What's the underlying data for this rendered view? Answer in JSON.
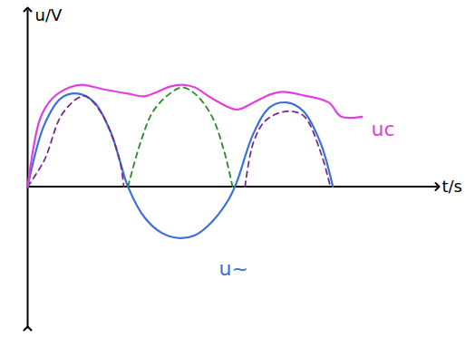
{
  "chart_data": {
    "type": "line",
    "x_label": "t/s",
    "y_label": "u/V",
    "xlim": [
      0,
      49
    ],
    "ylim": [
      -16,
      20
    ],
    "xticks": [],
    "yticks": [],
    "tick_labels": false,
    "series": [
      {
        "name": "u~",
        "color": "#3a6fe0",
        "line_style": "solid",
        "x": [
          0,
          2,
          4,
          6,
          8,
          10,
          11,
          12,
          14,
          16,
          18,
          20,
          22,
          24,
          25,
          27,
          29,
          31,
          33,
          35,
          36.5
        ],
        "values": [
          0,
          7,
          10,
          10.5,
          9.5,
          6,
          3,
          0,
          -3.5,
          -5.2,
          -5.8,
          -5.5,
          -4,
          -1.5,
          0.5,
          6,
          9,
          9.5,
          8.5,
          5,
          0
        ]
      },
      {
        "color": "#7a2a8a",
        "line_style": "dashed",
        "x": [
          0,
          2,
          4,
          6,
          7,
          9,
          11,
          11.5
        ],
        "values": [
          0,
          3,
          8,
          10,
          10.2,
          8,
          3,
          0
        ]
      },
      {
        "color": "#2a8a2a",
        "line_style": "dashed",
        "x": [
          12,
          13.5,
          15,
          17,
          18.5,
          20,
          22,
          23.5,
          24.5
        ],
        "values": [
          0,
          5,
          8.5,
          10.5,
          11.2,
          10.5,
          8,
          4,
          0
        ]
      },
      {
        "color": "#7a2a8a",
        "line_style": "dashed",
        "x": [
          26,
          27,
          28.5,
          31,
          33,
          35,
          36.2
        ],
        "values": [
          0,
          5,
          7.5,
          8.5,
          8,
          4,
          0
        ]
      },
      {
        "name": "uc",
        "color": "#e040e0",
        "line_style": "solid",
        "x": [
          0,
          1.5,
          3,
          5,
          6.5,
          9,
          12,
          14,
          15.5,
          17,
          18.5,
          20,
          22,
          25,
          27,
          29,
          30.5,
          33,
          36,
          37.5,
          40
        ],
        "values": [
          0,
          7.7,
          10,
          11.2,
          11.5,
          11,
          10.5,
          10.2,
          10.7,
          11.3,
          11.5,
          11.2,
          10,
          8.7,
          9.5,
          10.4,
          10.7,
          10.3,
          9.5,
          7.9,
          7.9
        ]
      }
    ]
  }
}
